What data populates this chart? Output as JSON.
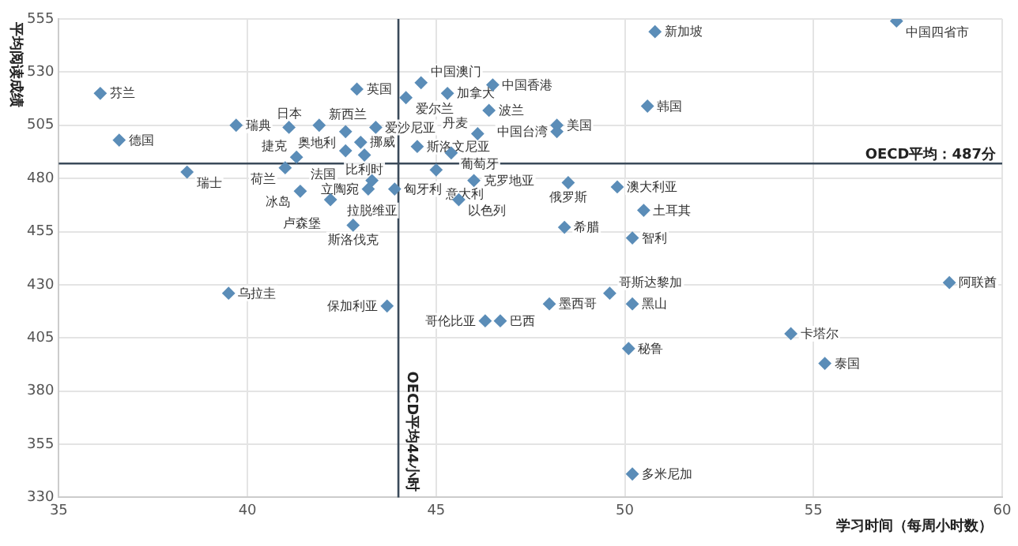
{
  "chart_data": {
    "type": "scatter",
    "xlabel": "学习时间（每周小时数）",
    "ylabel": "平均阅读成绩",
    "xlim": [
      35,
      60
    ],
    "xticks": [
      35,
      40,
      45,
      50,
      55,
      60
    ],
    "ylim": [
      330,
      555
    ],
    "yticks": [
      330,
      355,
      380,
      405,
      430,
      455,
      480,
      505,
      530,
      555
    ],
    "grid": true,
    "marker": "diamond",
    "legend": false,
    "series": [
      {
        "color": "#5b8db8",
        "x": [
          36.1,
          36.6,
          39.7,
          38.4,
          41.1,
          41.9,
          42.6,
          43.4,
          42.9,
          42.6,
          43.0,
          43.1,
          41.3,
          41.0,
          43.3,
          43.2,
          41.4,
          42.2,
          43.9,
          42.8,
          44.6,
          44.2,
          45.3,
          46.5,
          46.4,
          48.2,
          48.2,
          44.5,
          46.1,
          45.4,
          45.0,
          46.0,
          45.6,
          48.5,
          49.8,
          50.5,
          48.4,
          50.2,
          50.8,
          50.6,
          57.2,
          39.5,
          43.7,
          49.6,
          50.2,
          48.0,
          46.7,
          46.3,
          50.1,
          50.2,
          58.6,
          54.4,
          55.3
        ],
        "values": [
          520,
          498,
          505,
          483,
          504,
          505,
          502,
          504,
          522,
          493,
          497,
          491,
          490,
          485,
          479,
          475,
          474,
          470,
          475,
          458,
          525,
          518,
          520,
          524,
          512,
          505,
          502,
          495,
          501,
          492,
          484,
          479,
          470,
          478,
          476,
          465,
          457,
          452,
          549,
          514,
          554,
          426,
          420,
          426,
          421,
          421,
          413,
          413,
          400,
          341,
          431,
          407,
          393
        ]
      }
    ],
    "annotations": [
      {
        "text": "芬兰",
        "x": 36.1,
        "y": 520
      },
      {
        "text": "德国",
        "x": 36.6,
        "y": 498
      },
      {
        "text": "瑞典",
        "x": 39.7,
        "y": 505
      },
      {
        "text": "瑞士",
        "x": 38.4,
        "y": 483
      },
      {
        "text": "日本",
        "x": 41.1,
        "y": 504
      },
      {
        "text": "新西兰",
        "x": 41.9,
        "y": 505
      },
      {
        "text": "奥地利",
        "x": 42.6,
        "y": 502
      },
      {
        "text": "爱沙尼亚",
        "x": 43.4,
        "y": 504
      },
      {
        "text": "英国",
        "x": 42.9,
        "y": 522
      },
      {
        "text": "法国",
        "x": 42.6,
        "y": 493
      },
      {
        "text": "挪威",
        "x": 43.0,
        "y": 497
      },
      {
        "text": "比利时",
        "x": 43.1,
        "y": 491
      },
      {
        "text": "捷克",
        "x": 41.3,
        "y": 490
      },
      {
        "text": "荷兰",
        "x": 41.0,
        "y": 485
      },
      {
        "text": "拉脱维亚",
        "x": 43.3,
        "y": 479
      },
      {
        "text": "立陶宛",
        "x": 43.2,
        "y": 475
      },
      {
        "text": "冰岛",
        "x": 41.4,
        "y": 474
      },
      {
        "text": "卢森堡",
        "x": 42.2,
        "y": 470
      },
      {
        "text": "匈牙利",
        "x": 43.9,
        "y": 475
      },
      {
        "text": "斯洛伐克",
        "x": 42.8,
        "y": 458
      },
      {
        "text": "中国澳门",
        "x": 44.6,
        "y": 525
      },
      {
        "text": "爱尔兰",
        "x": 44.2,
        "y": 518
      },
      {
        "text": "加拿大",
        "x": 45.3,
        "y": 520
      },
      {
        "text": "中国香港",
        "x": 46.5,
        "y": 524
      },
      {
        "text": "波兰",
        "x": 46.4,
        "y": 512
      },
      {
        "text": "美国",
        "x": 48.2,
        "y": 505
      },
      {
        "text": "中国台湾",
        "x": 48.2,
        "y": 502
      },
      {
        "text": "斯洛文尼亚",
        "x": 44.5,
        "y": 495
      },
      {
        "text": "丹麦",
        "x": 46.1,
        "y": 501
      },
      {
        "text": "葡萄牙",
        "x": 45.4,
        "y": 492
      },
      {
        "text": "意大利",
        "x": 45.0,
        "y": 484
      },
      {
        "text": "克罗地亚",
        "x": 46.0,
        "y": 479
      },
      {
        "text": "以色列",
        "x": 45.6,
        "y": 470
      },
      {
        "text": "俄罗斯",
        "x": 48.5,
        "y": 478
      },
      {
        "text": "澳大利亚",
        "x": 49.8,
        "y": 476
      },
      {
        "text": "土耳其",
        "x": 50.5,
        "y": 465
      },
      {
        "text": "希腊",
        "x": 48.4,
        "y": 457
      },
      {
        "text": "智利",
        "x": 50.2,
        "y": 452
      },
      {
        "text": "新加坡",
        "x": 50.8,
        "y": 549
      },
      {
        "text": "韩国",
        "x": 50.6,
        "y": 514
      },
      {
        "text": "中国四省市",
        "x": 57.2,
        "y": 554
      },
      {
        "text": "乌拉圭",
        "x": 39.5,
        "y": 426
      },
      {
        "text": "保加利亚",
        "x": 43.7,
        "y": 420
      },
      {
        "text": "哥斯达黎加",
        "x": 49.6,
        "y": 426
      },
      {
        "text": "黑山",
        "x": 50.2,
        "y": 421
      },
      {
        "text": "墨西哥",
        "x": 48.0,
        "y": 421
      },
      {
        "text": "巴西",
        "x": 46.7,
        "y": 413
      },
      {
        "text": "哥伦比亚",
        "x": 46.3,
        "y": 413
      },
      {
        "text": "秘鲁",
        "x": 50.1,
        "y": 400
      },
      {
        "text": "多米尼加",
        "x": 50.2,
        "y": 341
      },
      {
        "text": "阿联酋",
        "x": 58.6,
        "y": 431
      },
      {
        "text": "卡塔尔",
        "x": 54.4,
        "y": 407
      },
      {
        "text": "泰国",
        "x": 55.3,
        "y": 393
      }
    ],
    "ref_lines": [
      {
        "axis": "y",
        "value": 487,
        "label": "OECD平均：487分",
        "color": "#3a4a5a"
      },
      {
        "axis": "x",
        "value": 44,
        "label": "OECD平均44小时",
        "color": "#3a4a5a"
      }
    ]
  }
}
